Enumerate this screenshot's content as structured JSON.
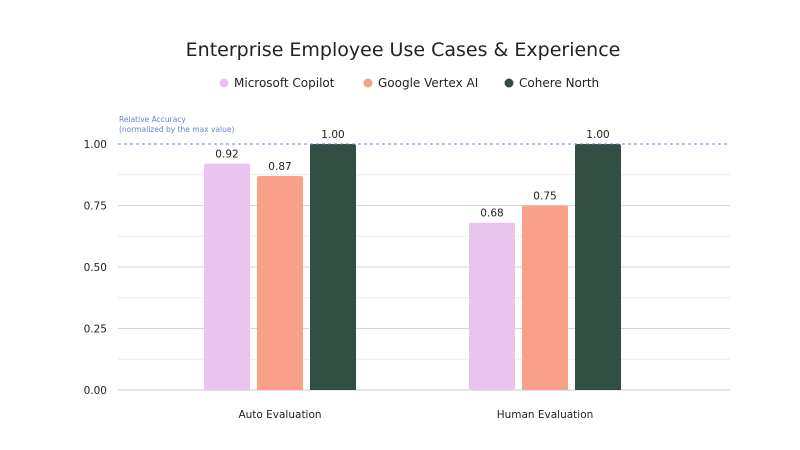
{
  "chart_data": {
    "type": "bar",
    "title": "Enterprise Employee Use Cases & Experience",
    "categories": [
      "Auto Evaluation",
      "Human Evaluation"
    ],
    "series": [
      {
        "name": "Microsoft Copilot",
        "color": "#e8c4ef",
        "values": [
          0.92,
          0.68
        ],
        "labels": [
          "0.92",
          "0.68"
        ]
      },
      {
        "name": "Google Vertex AI",
        "color": "#f9a188",
        "values": [
          0.87,
          0.75
        ],
        "labels": [
          "0.87",
          "0.75"
        ]
      },
      {
        "name": "Cohere North",
        "color": "#334e43",
        "values": [
          1.0,
          1.0
        ],
        "labels": [
          "1.00",
          "1.00"
        ]
      }
    ],
    "ylim": [
      0,
      1.0
    ],
    "yticks": [
      0.0,
      0.25,
      0.5,
      0.75,
      1.0
    ],
    "ytick_labels": [
      "0.00",
      "0.25",
      "0.50",
      "0.75",
      "1.00"
    ],
    "grid": true,
    "legend_position": "top-center",
    "annotation": {
      "line1": "Relative Accuracy",
      "line2": "(normalized by the max value)",
      "reference_value": 1.0,
      "color": "#6b7fd6"
    }
  }
}
